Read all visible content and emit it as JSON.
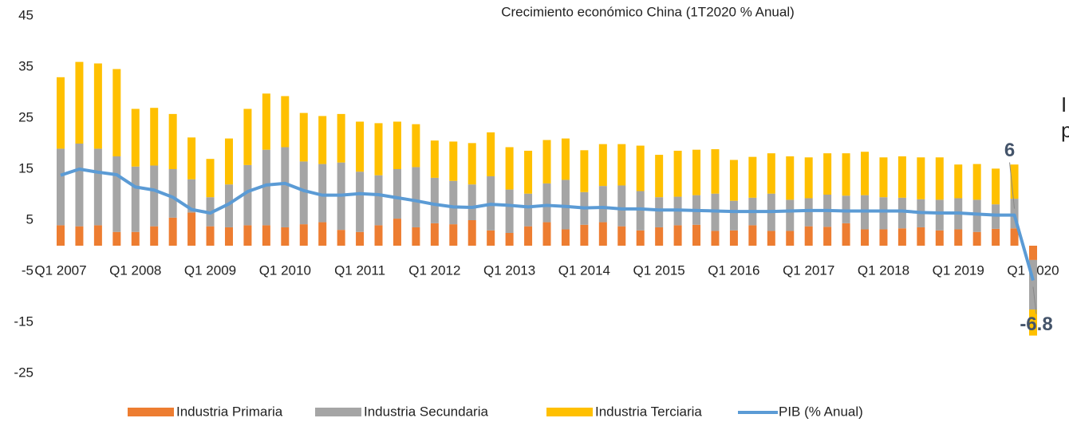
{
  "chart_data": {
    "type": "bar",
    "title": "Crecimiento económico China (1T2020 % Anual)",
    "categories": [
      "Q1 2007",
      null,
      null,
      null,
      "Q1 2008",
      null,
      null,
      null,
      "Q1 2009",
      null,
      null,
      null,
      "Q1 2010",
      null,
      null,
      null,
      "Q1 2011",
      null,
      null,
      null,
      "Q1 2012",
      null,
      null,
      null,
      "Q1 2013",
      null,
      null,
      null,
      "Q1 2014",
      null,
      null,
      null,
      "Q1 2015",
      null,
      null,
      null,
      "Q1 2016",
      null,
      null,
      null,
      "Q1 2017",
      null,
      null,
      null,
      "Q1 2018",
      null,
      null,
      null,
      "Q1 2019",
      null,
      null,
      null,
      "Q1 2020"
    ],
    "series": [
      {
        "name": "Industria Primaria",
        "color": "#ed7d31",
        "kind": "bar",
        "values": [
          4,
          3.8,
          4,
          2.7,
          2.7,
          3.8,
          5.5,
          6.5,
          3.8,
          3.6,
          4,
          4,
          3.6,
          4.2,
          4.6,
          3.1,
          2.7,
          4,
          5.3,
          3.6,
          4.4,
          4.2,
          5,
          3,
          2.5,
          3.8,
          4.6,
          3.2,
          4.1,
          4.6,
          3.8,
          3,
          3.6,
          4,
          4.1,
          2.9,
          3,
          4,
          2.9,
          2.9,
          3.8,
          3.7,
          4.4,
          3.2,
          3.2,
          3.4,
          3.6,
          3,
          3.2,
          2.7,
          3.3,
          3.4,
          -2.8
        ]
      },
      {
        "name": "Industria Secundaria",
        "color": "#a5a5a5",
        "kind": "bar",
        "values": [
          15,
          16.2,
          15,
          14.8,
          12.8,
          11.9,
          9.5,
          6.5,
          5.7,
          8.4,
          11.8,
          14.8,
          15.7,
          12.3,
          11.4,
          13.2,
          11.8,
          9.8,
          9.7,
          11.8,
          8.9,
          8.5,
          7,
          10.6,
          8.5,
          6.4,
          7.6,
          9.7,
          6.4,
          7.1,
          8,
          7.7,
          5.9,
          5.6,
          5.8,
          7.3,
          5.8,
          5.4,
          7.3,
          6.1,
          5.5,
          6.3,
          5.4,
          6.7,
          6.3,
          6,
          5.5,
          6,
          6.1,
          6.3,
          4.8,
          5.8,
          -9.7
        ]
      },
      {
        "name": "Industria Terciaria",
        "color": "#ffc000",
        "kind": "bar",
        "values": [
          14,
          16,
          16.7,
          17.1,
          11.3,
          11.3,
          10.8,
          8.2,
          7.5,
          9,
          11,
          11,
          10,
          9.5,
          9.4,
          9.5,
          9.8,
          10.2,
          9.3,
          8.4,
          7.3,
          7.7,
          8.1,
          8.6,
          8.3,
          8.4,
          8.5,
          8.1,
          8.2,
          8.2,
          8.1,
          8.9,
          8.3,
          9,
          8.9,
          8.7,
          8,
          8,
          7.9,
          8.5,
          8,
          8.1,
          8.3,
          8.5,
          7.8,
          8.1,
          8.2,
          8.3,
          6.6,
          7,
          7,
          6.7,
          -5.1
        ]
      },
      {
        "name": "PIB (% Anual)",
        "color": "#5b9bd5",
        "kind": "line",
        "values": [
          13.8,
          15,
          14.4,
          13.9,
          11.5,
          10.9,
          9.5,
          7.1,
          6.4,
          8.2,
          10.6,
          11.9,
          12.2,
          10.8,
          9.9,
          9.9,
          10.2,
          10,
          9.4,
          8.8,
          8.1,
          7.6,
          7.5,
          8.1,
          7.9,
          7.6,
          7.9,
          7.7,
          7.4,
          7.5,
          7.2,
          7.2,
          7,
          7,
          6.9,
          6.8,
          6.7,
          6.7,
          6.7,
          6.8,
          6.9,
          6.9,
          6.8,
          6.8,
          6.8,
          6.8,
          6.5,
          6.4,
          6.4,
          6.2,
          6,
          6,
          -6.8
        ],
        "value_labels": [
          null,
          null,
          null,
          null,
          null,
          null,
          null,
          null,
          null,
          null,
          null,
          null,
          null,
          null,
          null,
          null,
          null,
          null,
          null,
          null,
          null,
          null,
          null,
          null,
          null,
          null,
          null,
          null,
          null,
          null,
          null,
          null,
          null,
          null,
          null,
          null,
          null,
          null,
          null,
          null,
          null,
          null,
          null,
          null,
          null,
          null,
          null,
          null,
          null,
          null,
          null,
          "6",
          "-6.8"
        ]
      }
    ],
    "ylim": [
      -25,
      45
    ],
    "yticks": [
      -25,
      -15,
      -5,
      5,
      15,
      25,
      35,
      45
    ],
    "grid": false,
    "legend": "bottom",
    "side_text": [
      "I",
      "p"
    ]
  }
}
